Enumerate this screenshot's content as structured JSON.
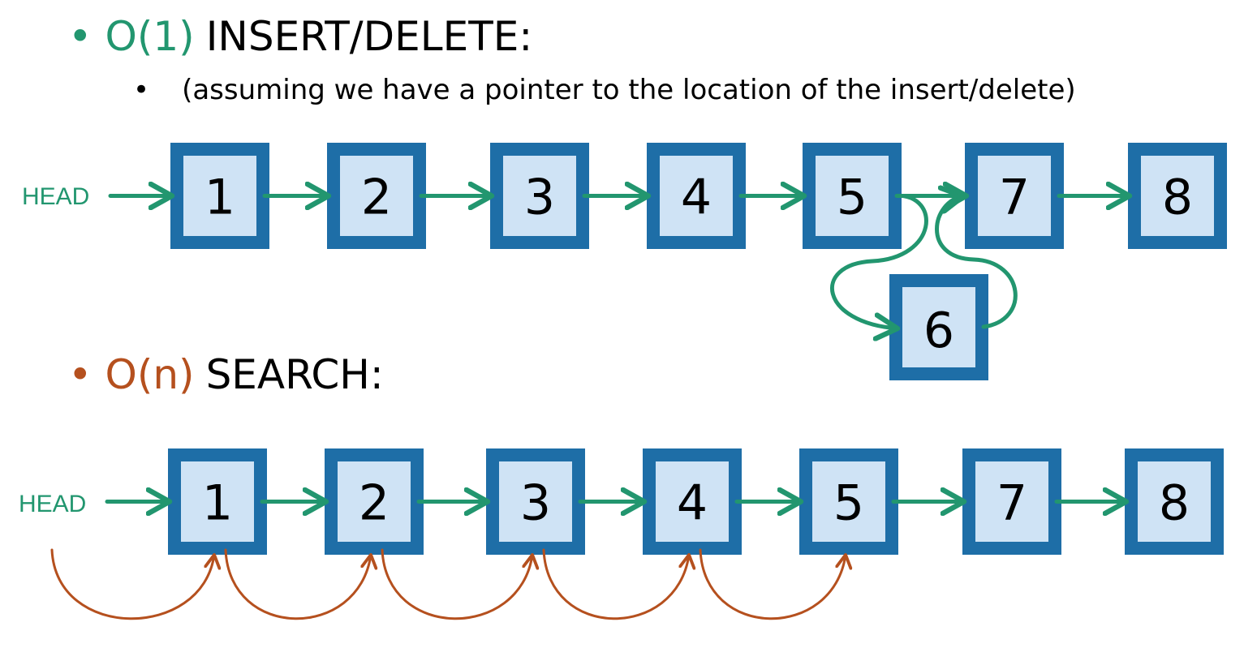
{
  "colors": {
    "green": "#22966f",
    "orange": "#b5501e",
    "node_border": "#1e6ea7",
    "node_fill": "#cfe3f5",
    "text": "#000000"
  },
  "section_insert": {
    "bullet": "•",
    "complexity": "O(1)",
    "title": "INSERT/DELETE:",
    "sub_bullet": "•",
    "note": "(assuming we have a pointer to the location of the insert/delete)",
    "head_label": "HEAD",
    "nodes": [
      "1",
      "2",
      "3",
      "4",
      "5",
      "7",
      "8"
    ],
    "inserted_node": "6"
  },
  "section_search": {
    "bullet": "•",
    "complexity": "O(n)",
    "title": "SEARCH:",
    "head_label": "HEAD",
    "nodes": [
      "1",
      "2",
      "3",
      "4",
      "5",
      "7",
      "8"
    ],
    "search_hops": 5
  }
}
